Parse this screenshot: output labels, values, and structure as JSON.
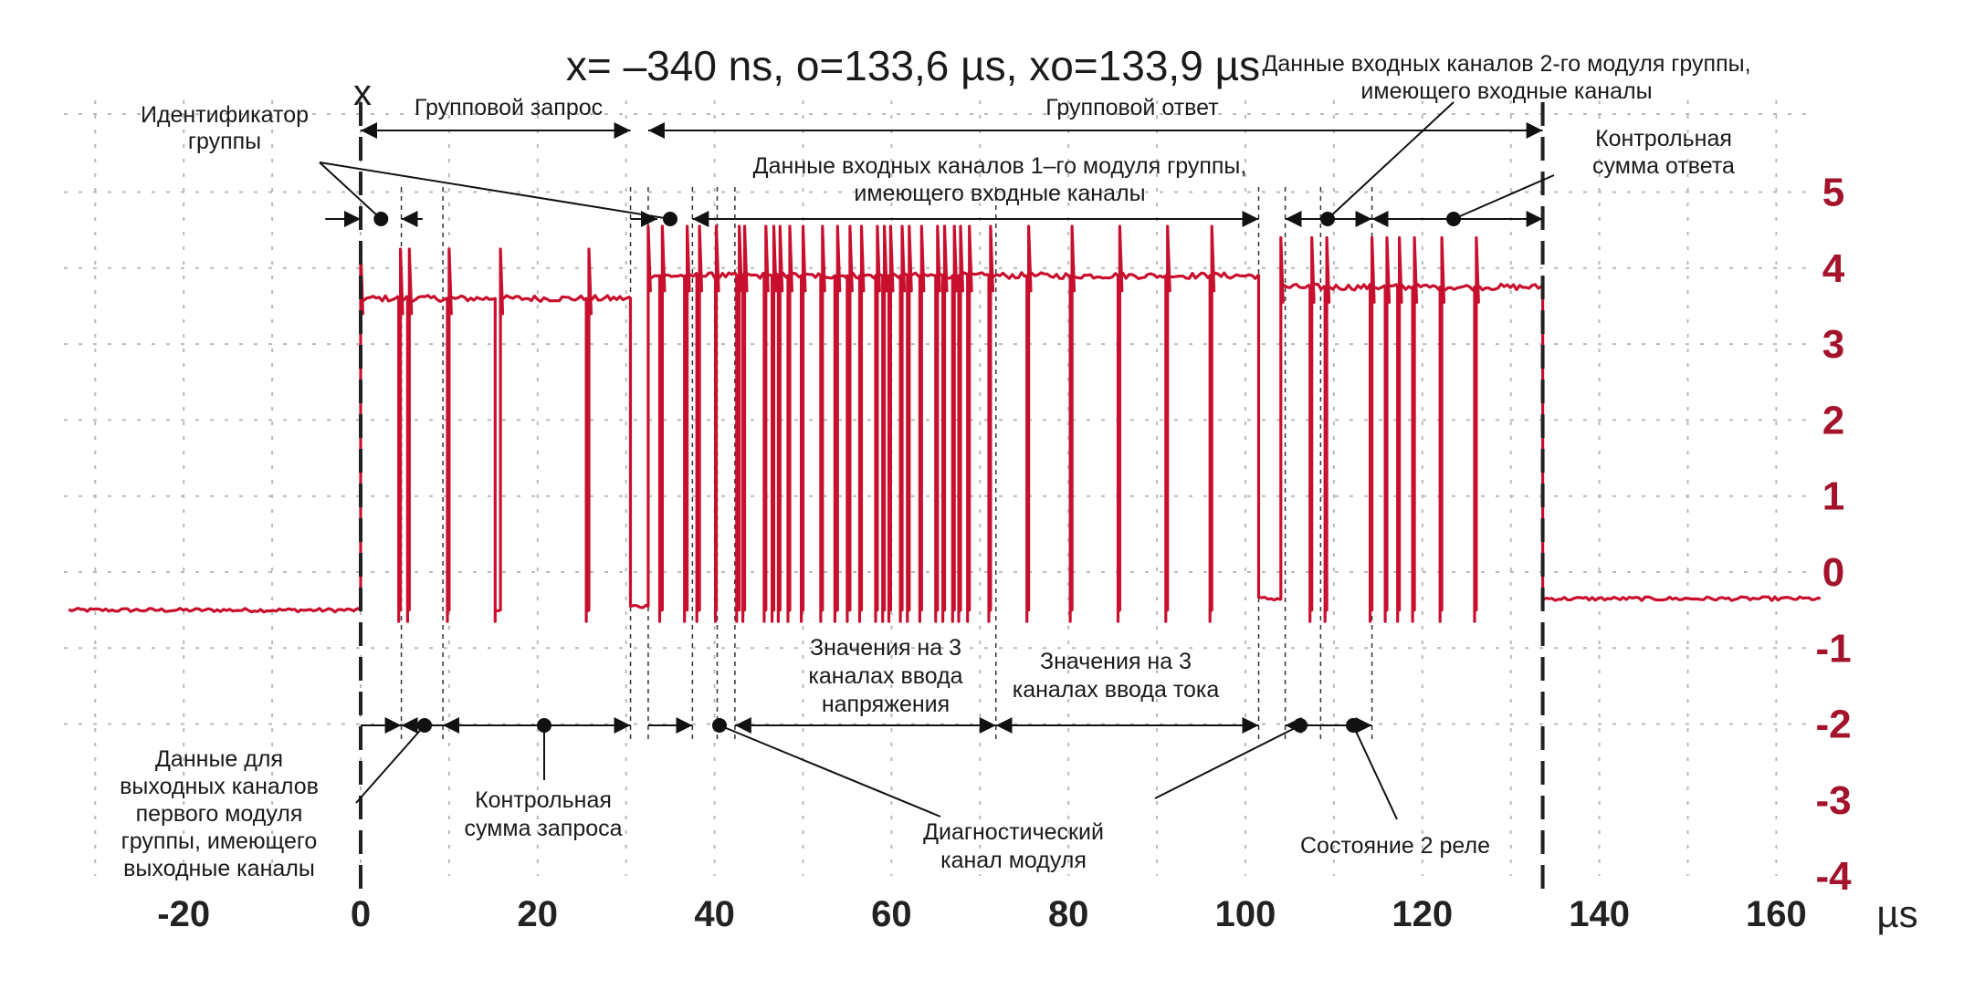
{
  "header": {
    "measure_text": "x= –340 ns, o=133,6 µs, xo=133,9 µs",
    "cursor_x_label": "x"
  },
  "chart_data": {
    "type": "line",
    "x_unit": "µs",
    "xlim": [
      -33,
      165
    ],
    "ylim": [
      -4,
      5.5
    ],
    "x_ticks": [
      -20,
      0,
      20,
      40,
      60,
      80,
      100,
      120,
      140,
      160
    ],
    "x_tick_labels": [
      "-20",
      "0",
      "20",
      "40",
      "60",
      "80",
      "100",
      "120",
      "140",
      "160"
    ],
    "y_ticks": [
      5,
      4,
      3,
      2,
      1,
      0,
      -1,
      -2,
      -3,
      -4
    ],
    "y_tick_labels": [
      "5",
      "4",
      "3",
      "2",
      "1",
      "0",
      "-1",
      "-2",
      "-3",
      "-4"
    ],
    "grid": true,
    "line_color": "#c8102e",
    "cursors": [
      0,
      133.6
    ],
    "signal": {
      "low_level": -0.5,
      "tail_level": -0.35,
      "segments": [
        {
          "x0": -33,
          "x1": 0,
          "level": -0.5
        },
        {
          "x0": 0,
          "x1": 30.5,
          "level": 3.6
        },
        {
          "x0": 30.5,
          "x1": 32.5,
          "level": -0.45
        },
        {
          "x0": 32.5,
          "x1": 101.5,
          "level": 3.9
        },
        {
          "x0": 101.5,
          "x1": 104,
          "level": -0.35
        },
        {
          "x0": 104,
          "x1": 133.6,
          "level": 3.75
        },
        {
          "x0": 133.6,
          "x1": 165,
          "level": -0.35
        }
      ],
      "pulses": [
        [
          4.3,
          4.5
        ],
        [
          5.3,
          5.5
        ],
        [
          9.8,
          10.0
        ],
        [
          15.2,
          15.8
        ],
        [
          25.5,
          25.8
        ],
        [
          33.8,
          34.1
        ],
        [
          36.6,
          36.9
        ],
        [
          38.0,
          38.3
        ],
        [
          40.1,
          40.2
        ],
        [
          42.5,
          42.8
        ],
        [
          43.2,
          43.4
        ],
        [
          45.6,
          45.8
        ],
        [
          46.5,
          46.7
        ],
        [
          47.2,
          47.4
        ],
        [
          48.3,
          48.5
        ],
        [
          49.8,
          50.0
        ],
        [
          52.0,
          52.2
        ],
        [
          53.6,
          53.9
        ],
        [
          55.0,
          55.3
        ],
        [
          56.4,
          56.6
        ],
        [
          58.2,
          58.4
        ],
        [
          59.0,
          59.2
        ],
        [
          59.7,
          59.9
        ],
        [
          61.0,
          61.2
        ],
        [
          61.8,
          62.0
        ],
        [
          63.2,
          63.4
        ],
        [
          65.0,
          65.2
        ],
        [
          65.8,
          66.0
        ],
        [
          66.9,
          67.1
        ],
        [
          67.6,
          67.8
        ],
        [
          68.6,
          68.8
        ],
        [
          71.0,
          71.2
        ],
        [
          75.3,
          75.5
        ],
        [
          80.2,
          80.4
        ],
        [
          85.6,
          85.8
        ],
        [
          91.0,
          91.2
        ],
        [
          96.0,
          96.2
        ],
        [
          107.3,
          107.5
        ],
        [
          109.0,
          109.2
        ],
        [
          114.1,
          114.3
        ],
        [
          115.8,
          116.0
        ],
        [
          117.2,
          117.4
        ],
        [
          118.9,
          119.1
        ],
        [
          122.0,
          122.2
        ],
        [
          125.9,
          126.1
        ]
      ]
    }
  },
  "annotations": {
    "group_id": "Идентификатор\nгруппы",
    "group_request": "Групповой запрос",
    "group_response": "Групповой ответ",
    "module2_inputs": "Данные входных каналов 2-го модуля группы,\nимеющего входные каналы",
    "resp_checksum": "Контрольная\nсумма ответа",
    "module1_inputs": "Данные входных каналов 1–го модуля группы,\nимеющего входные каналы",
    "output_data": "Данные для\nвыходных каналов\nпервого модуля\nгруппы, имеющего\nвыходные каналы",
    "req_checksum": "Контрольная\nсумма запроса",
    "voltage_vals": "Значения на 3\nканалах ввода\nнапряжения",
    "current_vals": "Значения на 3\nканалах ввода тока",
    "diag_channel": "Диагностический\nканал модуля",
    "relay_state": "Состояние 2 реле"
  }
}
